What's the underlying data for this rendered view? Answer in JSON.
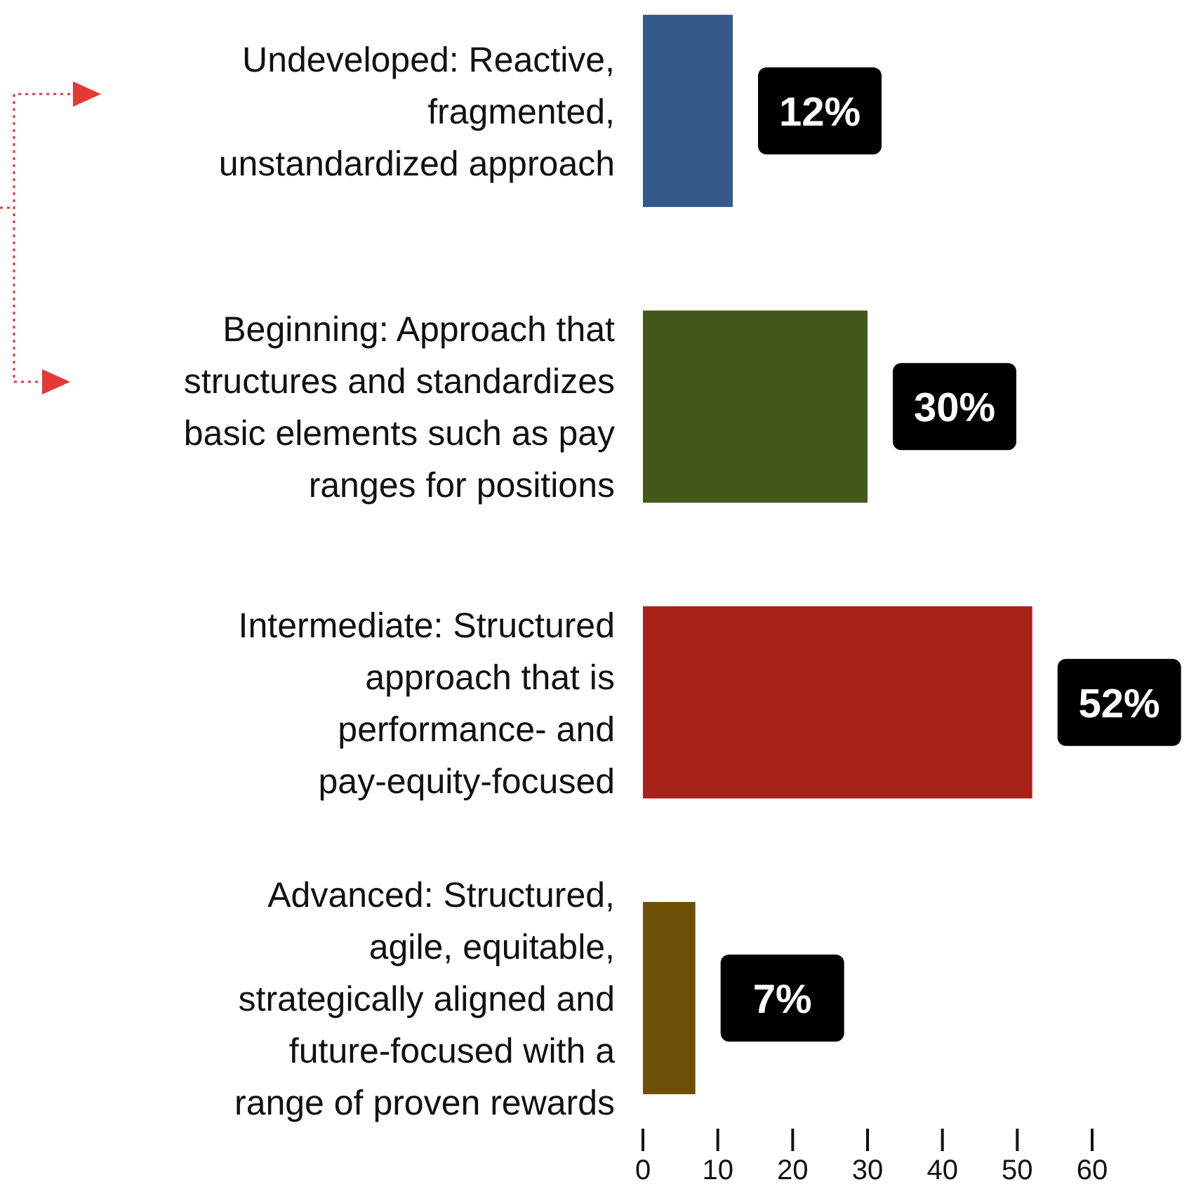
{
  "chart_data": {
    "type": "bar",
    "orientation": "horizontal",
    "categories": [
      "Undeveloped: Reactive,\nfragmented,\nunstandardized approach",
      "Beginning: Approach that\nstructures and standardizes\nbasic elements such as pay\nranges for positions",
      "Intermediate: Structured\napproach that is\nperformance- and\npay-equity-focused",
      "Advanced: Structured,\nagile, equitable,\nstrategically aligned and\nfuture-focused with a\nrange of proven rewards"
    ],
    "values": [
      12,
      30,
      52,
      7
    ],
    "colors": [
      "#355a8a",
      "#45581c",
      "#a8221a",
      "#6e5009"
    ],
    "value_labels": [
      "12%",
      "30%",
      "52%",
      "7%"
    ],
    "xlim": [
      0,
      60
    ],
    "xticks": [
      0,
      10,
      20,
      30,
      40,
      50,
      60
    ],
    "grid": false
  }
}
